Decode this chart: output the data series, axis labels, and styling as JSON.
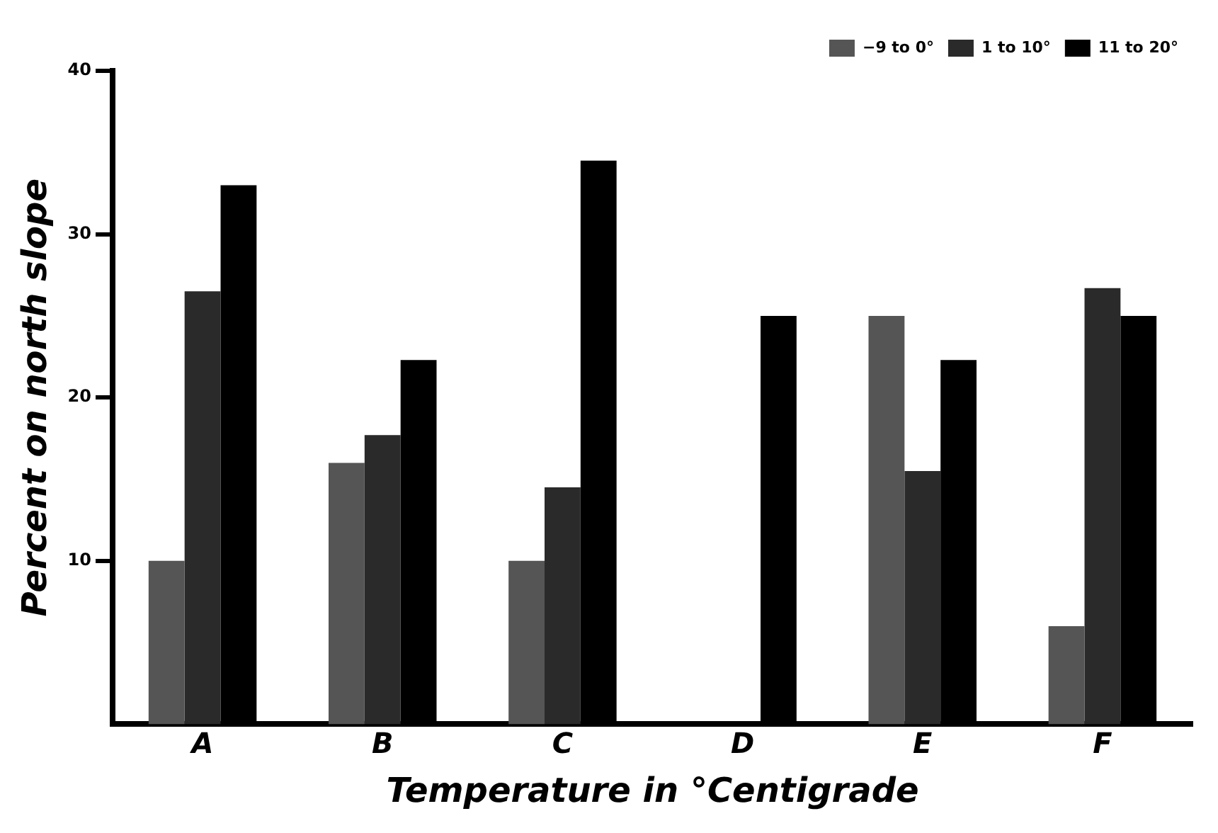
{
  "chart_data": {
    "type": "bar",
    "xlabel": "Temperature in °Centigrade",
    "ylabel": "Percent on north slope",
    "categories": [
      "A",
      "B",
      "C",
      "D",
      "E",
      "F"
    ],
    "series": [
      {
        "name": "−9 to 0°",
        "color": "#555555",
        "values": [
          10,
          16,
          10,
          0,
          25,
          6
        ]
      },
      {
        "name": "1 to 10°",
        "color": "#2a2a2a",
        "values": [
          26.5,
          17.7,
          14.5,
          0,
          15.5,
          26.7
        ]
      },
      {
        "name": "11 to 20°",
        "color": "#000000",
        "values": [
          33,
          22.3,
          34.5,
          25,
          22.3,
          25
        ]
      }
    ],
    "ylim": [
      0,
      40
    ],
    "yticks": [
      10,
      20,
      30,
      40
    ],
    "grid": false,
    "legend": "top right"
  }
}
